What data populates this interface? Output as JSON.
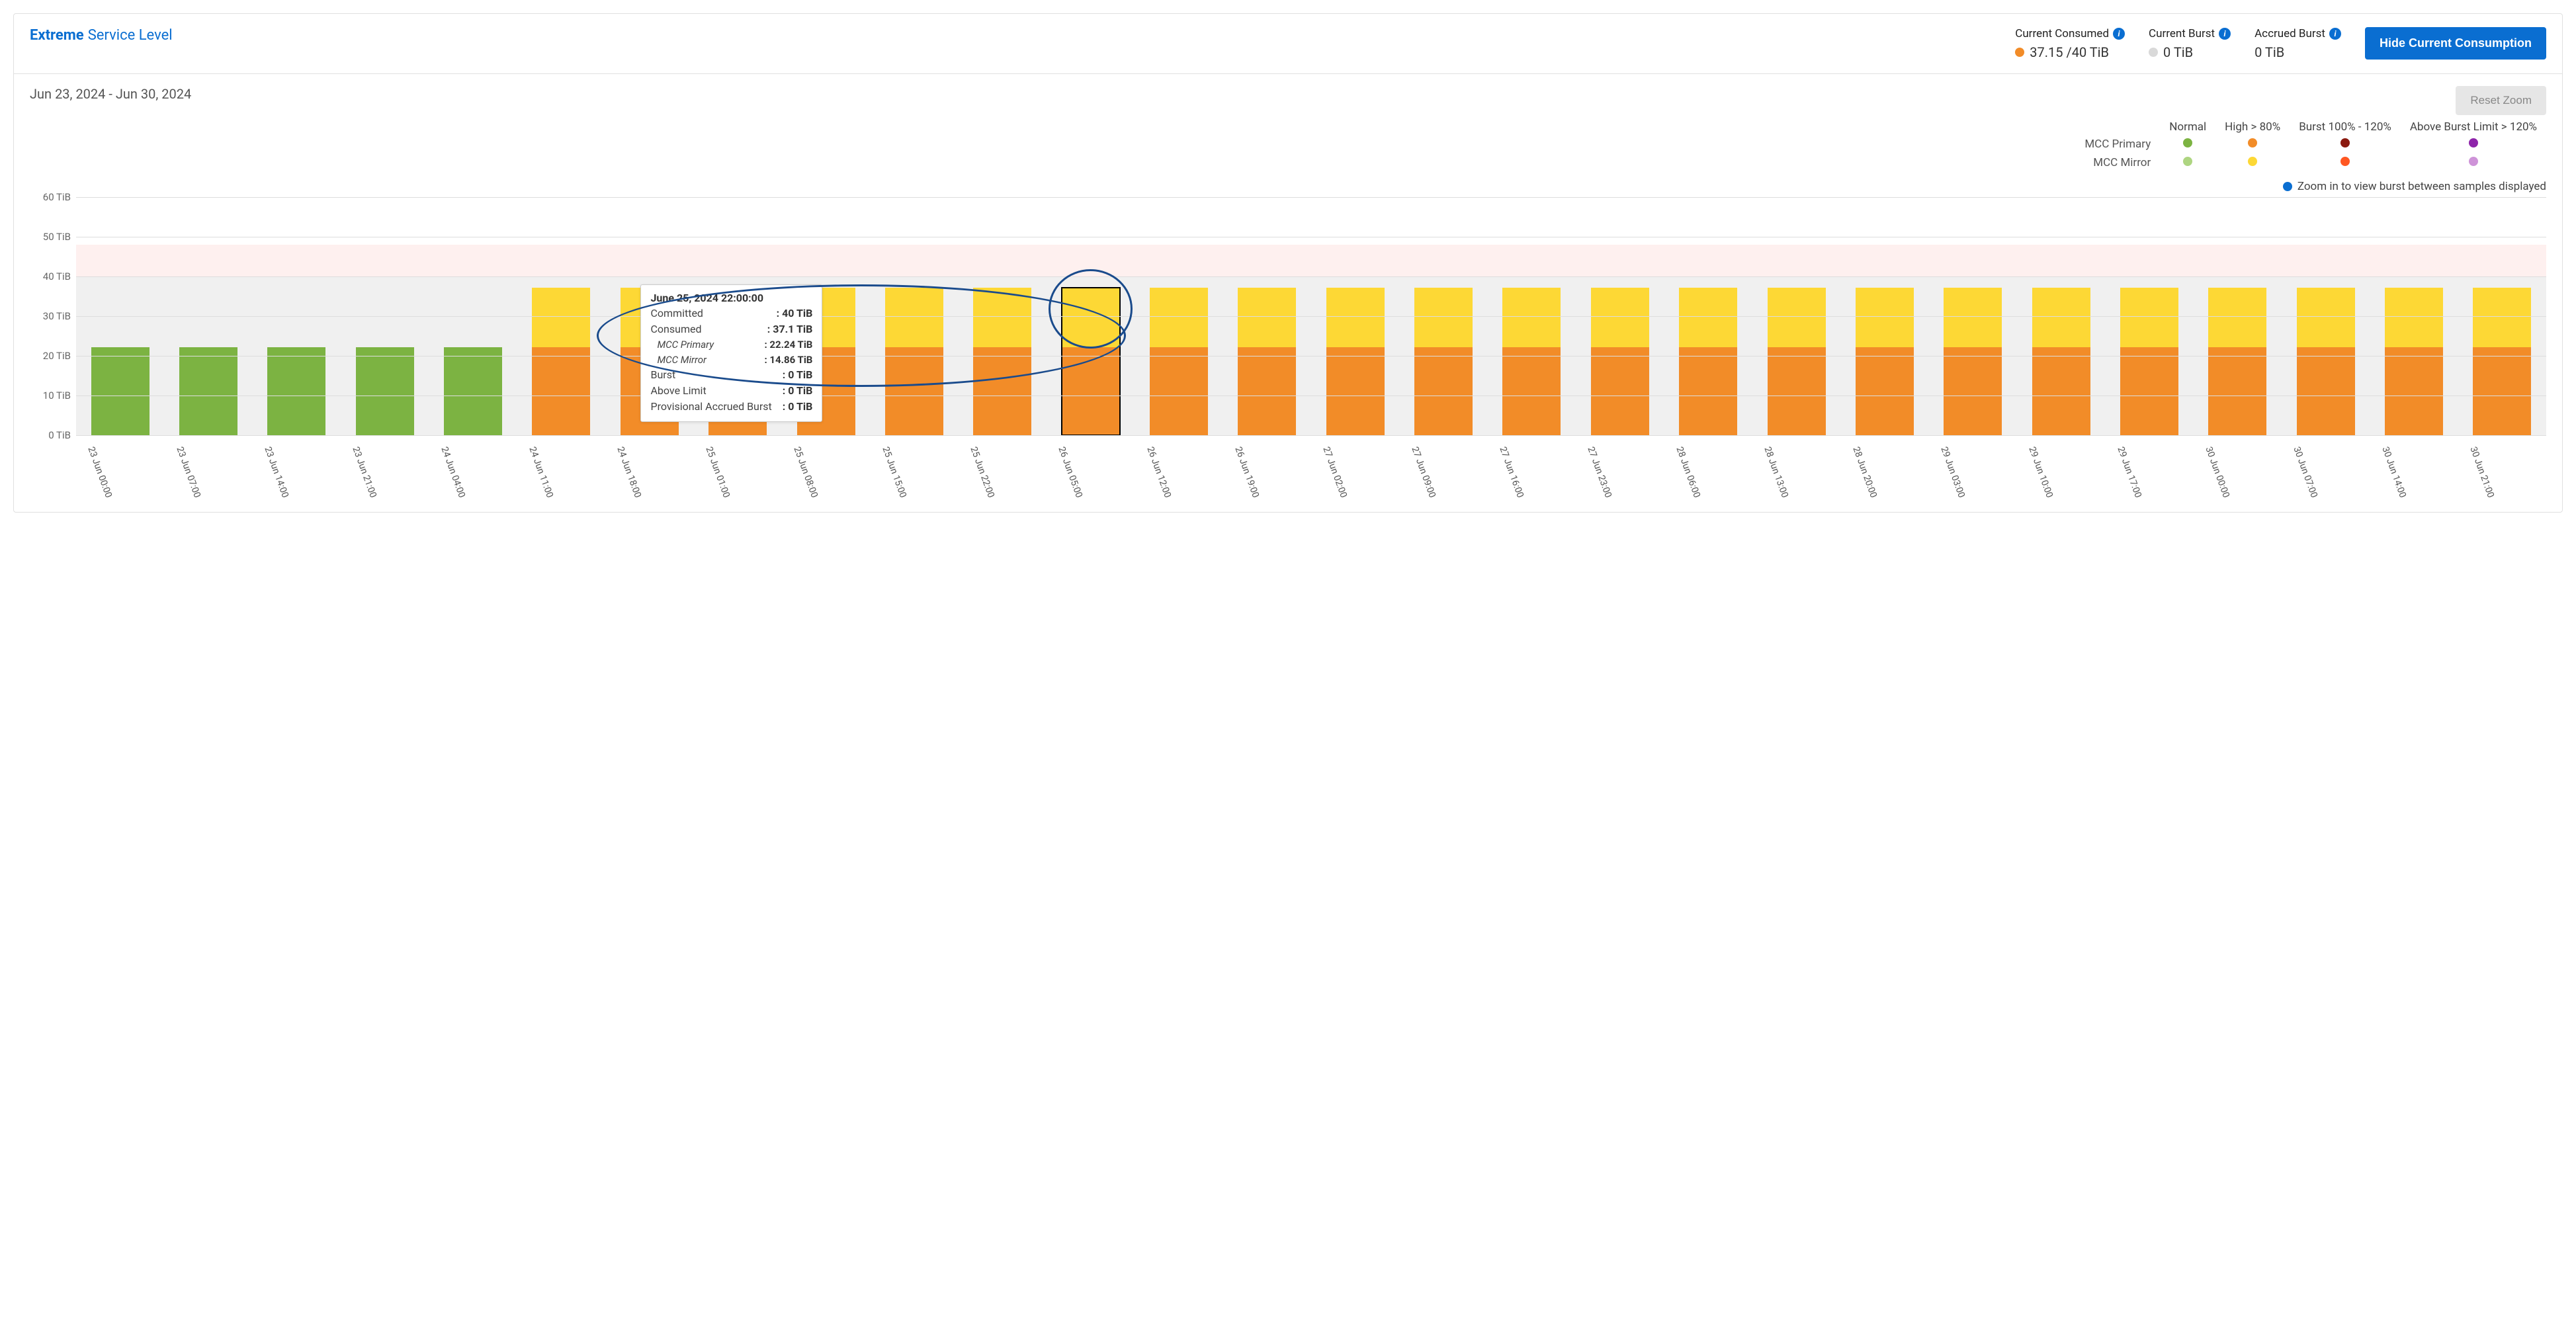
{
  "header": {
    "title_strong": "Extreme",
    "title_light": "Service Level",
    "metrics": {
      "consumed": {
        "label": "Current Consumed",
        "value": "37.15 /40 TiB",
        "dot_color": "#f28c28"
      },
      "burst": {
        "label": "Current Burst",
        "value": "0 TiB",
        "dot_color": "#d9d9d9"
      },
      "accrued": {
        "label": "Accrued Burst",
        "value": "0 TiB"
      }
    },
    "button": "Hide Current Consumption"
  },
  "subheader": {
    "date_range": "Jun 23, 2024 - Jun 30, 2024",
    "reset": "Reset Zoom"
  },
  "legend": {
    "columns": [
      "Normal",
      "High > 80%",
      "Burst 100% - 120%",
      "Above Burst Limit > 120%"
    ],
    "rows": [
      {
        "label": "MCC Primary",
        "colors": [
          "#7cb342",
          "#f28c28",
          "#8b1a10",
          "#8e24aa"
        ]
      },
      {
        "label": "MCC Mirror",
        "colors": [
          "#aed581",
          "#fdd835",
          "#ff5722",
          "#ce93d8"
        ]
      }
    ],
    "zoom_note": "Zoom in to view burst between samples displayed",
    "zoom_dot_color": "#0a6ed1"
  },
  "chart": {
    "type": "stacked-bar",
    "y_max": 60,
    "y_ticks": [
      0,
      10,
      20,
      30,
      40,
      50,
      60
    ],
    "y_unit": "TiB",
    "committed_line": 40,
    "burst_upper": 48,
    "background_color": "#ffffff",
    "grid_color": "#dddddd",
    "pink_band_color": "rgba(244,67,54,0.08)",
    "grey_band_color": "rgba(0,0,0,0.06)",
    "colors": {
      "primary_normal": "#7cb342",
      "primary_high": "#f28c28",
      "mirror_normal": "#aed581",
      "mirror_high": "#fdd835"
    },
    "highlight_index": 11,
    "bars": [
      {
        "x": "23 Jun 00:00",
        "primary": 22.24,
        "mirror": 0,
        "state": "normal"
      },
      {
        "x": "23 Jun 07:00",
        "primary": 22.24,
        "mirror": 0,
        "state": "normal"
      },
      {
        "x": "23 Jun 14:00",
        "primary": 22.24,
        "mirror": 0,
        "state": "normal"
      },
      {
        "x": "23 Jun 21:00",
        "primary": 22.24,
        "mirror": 0,
        "state": "normal"
      },
      {
        "x": "24 Jun 04:00",
        "primary": 22.24,
        "mirror": 0,
        "state": "normal"
      },
      {
        "x": "24 Jun 11:00",
        "primary": 22.24,
        "mirror": 14.86,
        "state": "high"
      },
      {
        "x": "24 Jun 18:00",
        "primary": 22.24,
        "mirror": 14.86,
        "state": "high"
      },
      {
        "x": "25 Jun 01:00",
        "primary": 22.24,
        "mirror": 14.86,
        "state": "high"
      },
      {
        "x": "25 Jun 08:00",
        "primary": 22.24,
        "mirror": 14.86,
        "state": "high"
      },
      {
        "x": "25 Jun 15:00",
        "primary": 22.24,
        "mirror": 14.86,
        "state": "high"
      },
      {
        "x": "25 Jun 22:00",
        "primary": 22.24,
        "mirror": 14.86,
        "state": "high"
      },
      {
        "x": "26 Jun 05:00",
        "primary": 22.24,
        "mirror": 14.86,
        "state": "high"
      },
      {
        "x": "26 Jun 12:00",
        "primary": 22.24,
        "mirror": 14.86,
        "state": "high"
      },
      {
        "x": "26 Jun 19:00",
        "primary": 22.24,
        "mirror": 14.86,
        "state": "high"
      },
      {
        "x": "27 Jun 02:00",
        "primary": 22.24,
        "mirror": 14.86,
        "state": "high"
      },
      {
        "x": "27 Jun 09:00",
        "primary": 22.24,
        "mirror": 14.86,
        "state": "high"
      },
      {
        "x": "27 Jun 16:00",
        "primary": 22.24,
        "mirror": 14.86,
        "state": "high"
      },
      {
        "x": "27 Jun 23:00",
        "primary": 22.24,
        "mirror": 14.86,
        "state": "high"
      },
      {
        "x": "28 Jun 06:00",
        "primary": 22.24,
        "mirror": 14.86,
        "state": "high"
      },
      {
        "x": "28 Jun 13:00",
        "primary": 22.24,
        "mirror": 14.86,
        "state": "high"
      },
      {
        "x": "28 Jun 20:00",
        "primary": 22.24,
        "mirror": 14.86,
        "state": "high"
      },
      {
        "x": "29 Jun 03:00",
        "primary": 22.24,
        "mirror": 14.86,
        "state": "high"
      },
      {
        "x": "29 Jun 10:00",
        "primary": 22.24,
        "mirror": 14.86,
        "state": "high"
      },
      {
        "x": "29 Jun 17:00",
        "primary": 22.24,
        "mirror": 14.86,
        "state": "high"
      },
      {
        "x": "30 Jun 00:00",
        "primary": 22.24,
        "mirror": 14.86,
        "state": "high"
      },
      {
        "x": "30 Jun 07:00",
        "primary": 22.24,
        "mirror": 14.86,
        "state": "high"
      },
      {
        "x": "30 Jun 14:00",
        "primary": 22.24,
        "mirror": 14.86,
        "state": "high"
      },
      {
        "x": "30 Jun 21:00",
        "primary": 22.24,
        "mirror": 14.86,
        "state": "high"
      }
    ]
  },
  "tooltip": {
    "title": "June 25, 2024 22:00:00",
    "rows": [
      {
        "k": "Committed",
        "v": "40 TiB"
      },
      {
        "k": "Consumed",
        "v": "37.1 TiB"
      },
      {
        "k": "MCC Primary",
        "v": "22.24 TiB",
        "sub": true
      },
      {
        "k": "MCC Mirror",
        "v": "14.86 TiB",
        "sub": true
      },
      {
        "k": "Burst",
        "v": "0 TiB"
      },
      {
        "k": "Above Limit",
        "v": "0 TiB"
      },
      {
        "k": "Provisional Accrued Burst",
        "v": "0 TiB"
      }
    ]
  },
  "annotations": {
    "ellipse_large": {
      "border_color": "#1a4b8c"
    },
    "ellipse_small": {
      "border_color": "#1a4b8c"
    }
  }
}
